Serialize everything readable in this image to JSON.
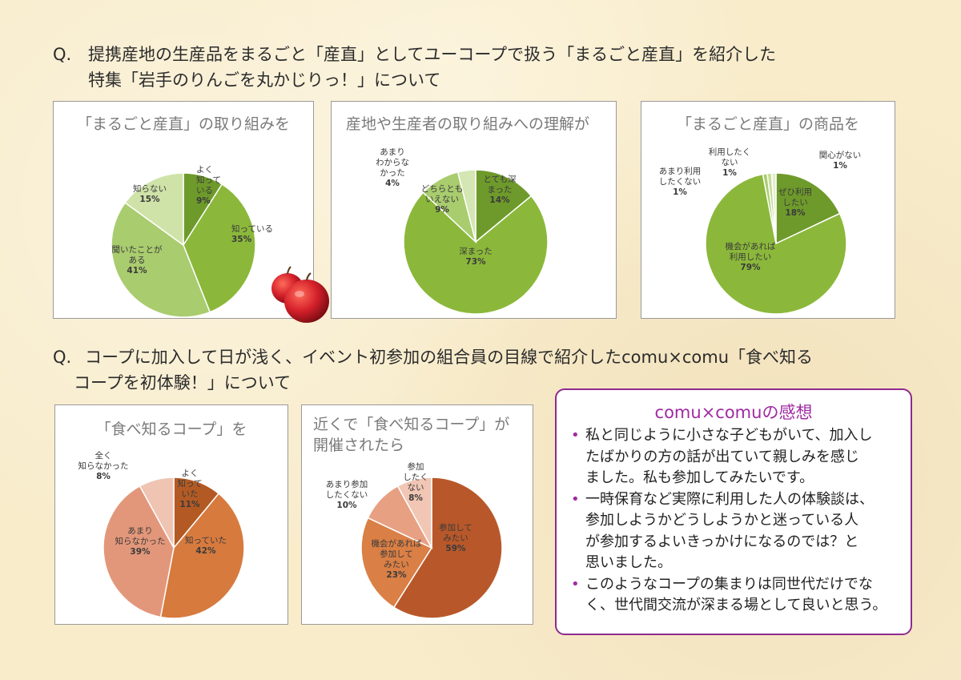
{
  "q1": {
    "mark": "Q.",
    "line1": "提携産地の生産品をまるごと「産直」としてユーコープで扱う「まるごと産直」を紹介した",
    "line2": "特集「岩手のりんごを丸かじりっ！」について"
  },
  "q2": {
    "mark": "Q.",
    "line1": "コープに加入して日が浅く、イベント初参加の組合員の目線で紹介したcomu×comu「食べ知る",
    "line2": "コープを初体験！」について"
  },
  "chart_data": [
    {
      "type": "pie",
      "title": "「まるごと産直」の取り組みを",
      "slices": [
        {
          "label": [
            "よく",
            "知って",
            "いる"
          ],
          "percent_label": "9%",
          "value": 9,
          "color": "#6e9a2b"
        },
        {
          "label": [
            "知っている"
          ],
          "percent_label": "35%",
          "value": 35,
          "color": "#8bb83b"
        },
        {
          "label": [
            "聞いたことが",
            "ある"
          ],
          "percent_label": "41%",
          "value": 41,
          "color": "#a9cc6e"
        },
        {
          "label": [
            "知らない"
          ],
          "percent_label": "15%",
          "value": 15,
          "color": "#cfe3a8"
        }
      ]
    },
    {
      "type": "pie",
      "title": "産地や生産者の取り組みへの理解が",
      "slices": [
        {
          "label": [
            "とても深",
            "まった"
          ],
          "percent_label": "14%",
          "value": 14,
          "color": "#6e9a2b"
        },
        {
          "label": [
            "深まった"
          ],
          "percent_label": "73%",
          "value": 73,
          "color": "#8bb83b"
        },
        {
          "label": [
            "どちらとも",
            "いえない"
          ],
          "percent_label": "9%",
          "value": 9,
          "color": "#a9cc6e"
        },
        {
          "label": [
            "あまり",
            "わからな",
            "かった"
          ],
          "percent_label": "4%",
          "value": 4,
          "color": "#d4e6b3"
        }
      ]
    },
    {
      "type": "pie",
      "title": "「まるごと産直」の商品を",
      "slices": [
        {
          "label": [
            "ぜひ利用",
            "したい"
          ],
          "percent_label": "18%",
          "value": 18,
          "color": "#6e9a2b"
        },
        {
          "label": [
            "機会があれば",
            "利用したい"
          ],
          "percent_label": "79%",
          "value": 79,
          "color": "#8bb83b"
        },
        {
          "label": [
            "あまり利用",
            "したくない"
          ],
          "percent_label": "1%",
          "value": 1,
          "color": "#a9cc6e"
        },
        {
          "label": [
            "利用したく",
            "ない"
          ],
          "percent_label": "1%",
          "value": 1,
          "color": "#c5dc97"
        },
        {
          "label": [
            "関心がない"
          ],
          "percent_label": "1%",
          "value": 1,
          "color": "#e2eecb"
        }
      ]
    },
    {
      "type": "pie",
      "title": "「食べ知るコープ」を",
      "slices": [
        {
          "label": [
            "よく",
            "知って",
            "いた"
          ],
          "percent_label": "11%",
          "value": 11,
          "color": "#b35a24"
        },
        {
          "label": [
            "知っていた"
          ],
          "percent_label": "42%",
          "value": 42,
          "color": "#d77a3e"
        },
        {
          "label": [
            "あまり",
            "知らなかった"
          ],
          "percent_label": "39%",
          "value": 39,
          "color": "#e3977a"
        },
        {
          "label": [
            "全く",
            "知らなかった"
          ],
          "percent_label": "8%",
          "value": 8,
          "color": "#efc4b2"
        }
      ]
    },
    {
      "type": "pie",
      "title": [
        "近くで「食べ知るコープ」が",
        "開催されたら"
      ],
      "slices": [
        {
          "label": [
            "参加して",
            "みたい"
          ],
          "percent_label": "59%",
          "value": 59,
          "color": "#b8582a"
        },
        {
          "label": [
            "機会があれば",
            "参加して",
            "みたい"
          ],
          "percent_label": "23%",
          "value": 23,
          "color": "#da7f45"
        },
        {
          "label": [
            "あまり参加",
            "したくない"
          ],
          "percent_label": "10%",
          "value": 10,
          "color": "#e8a083"
        },
        {
          "label": [
            "参加",
            "したく",
            "ない"
          ],
          "percent_label": "8%",
          "value": 8,
          "color": "#f1c6b4"
        }
      ]
    }
  ],
  "comment": {
    "title": "comu×comuの感想",
    "bullet": "•",
    "items": [
      [
        "私と同じように小さな子どもがいて、加入し",
        "たばかりの方の話が出ていて親しみを感じ",
        "ました。私も参加してみたいです。"
      ],
      [
        "一時保育など実際に利用した人の体験談は、",
        "参加しようかどうしようかと迷っている人",
        "が参加するよいきっかけになるのでは？と",
        "思いました。"
      ],
      [
        "このようなコープの集まりは同世代だけでな",
        "く、世代間交流が深まる場として良いと思う。"
      ]
    ]
  }
}
